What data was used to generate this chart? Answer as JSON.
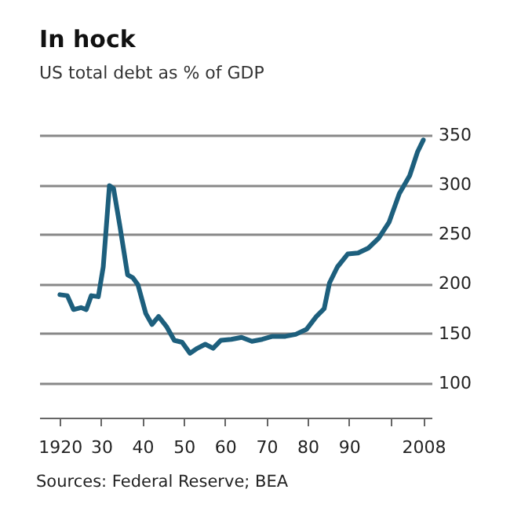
{
  "chart_data": {
    "type": "line",
    "title": "In hock",
    "subtitle": "US total debt as % of GDP",
    "annotations": [
      "Sources: Federal Reserve; BEA"
    ],
    "x": [
      1920,
      1921.8,
      1923.3,
      1925.1,
      1926.4,
      1927.6,
      1929.3,
      1930.5,
      1932,
      1933,
      1934.5,
      1936.4,
      1937.7,
      1938.9,
      1940.8,
      1942.3,
      1943.9,
      1945.8,
      1947.7,
      1949.6,
      1951.5,
      1953.3,
      1955.2,
      1957.1,
      1959,
      1961.5,
      1964,
      1966.5,
      1969,
      1971.5,
      1974.6,
      1977.1,
      1979.7,
      1982.1,
      1984,
      1985.3,
      1987.2,
      1989.7,
      1992.2,
      1994.7,
      1997.2,
      1999.7,
      2002.2,
      2004.7,
      2006.6,
      2008
    ],
    "series": [
      {
        "color": "#1d5f7d",
        "values": [
          189,
          188,
          174,
          176,
          174,
          188,
          187,
          217,
          299,
          296,
          259,
          209,
          206,
          199,
          170,
          159,
          167,
          157,
          143,
          141,
          130,
          135,
          139,
          135,
          143,
          144,
          146,
          142,
          144,
          147,
          147,
          149,
          154,
          167,
          175,
          201,
          217,
          230,
          231,
          236,
          246,
          262,
          291,
          309,
          333,
          345
        ]
      }
    ],
    "xlim": [
      1915,
      2010
    ],
    "xticks": [
      1920,
      {
        "value": 1930,
        "label": "30"
      },
      {
        "value": 1940,
        "label": "40"
      },
      {
        "value": 1950,
        "label": "50"
      },
      {
        "value": 1960,
        "label": "60"
      },
      {
        "value": 1970,
        "label": "70"
      },
      {
        "value": 1980,
        "label": "80"
      },
      {
        "value": 1990,
        "label": "90"
      },
      {
        "value": 2000,
        "label": null
      },
      2008
    ],
    "ylim": [
      65,
      350
    ],
    "yticks": [
      100,
      150,
      200,
      250,
      300,
      350
    ],
    "grid": "y",
    "marker": "none",
    "line_style": "solid"
  }
}
